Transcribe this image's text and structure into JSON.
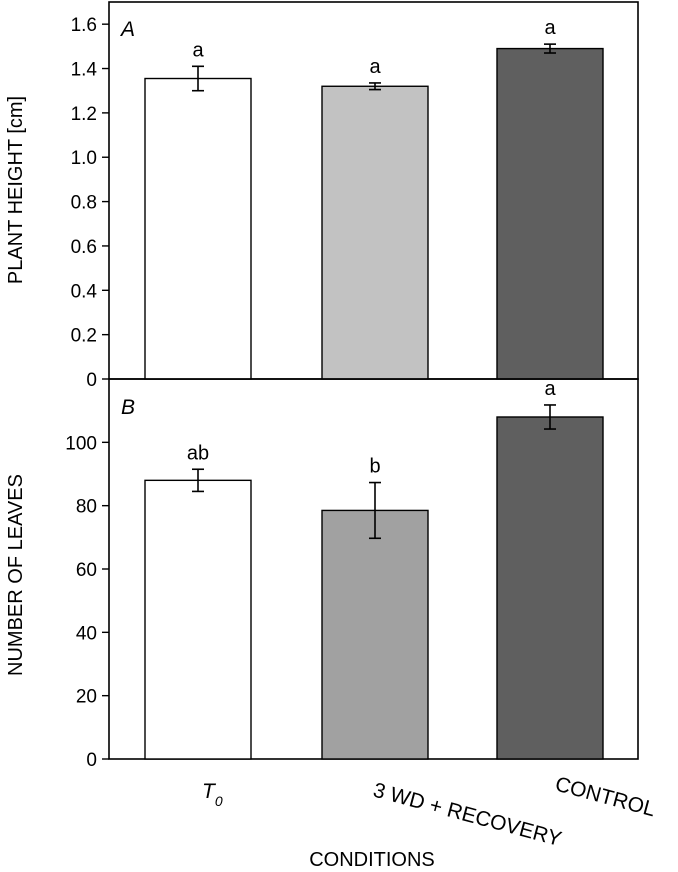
{
  "chart_data": [
    {
      "type": "bar",
      "panel_label": "A",
      "ylabel": "PLANT HEIGHT [cm]",
      "ylim": [
        0,
        1.7
      ],
      "yticks": [
        "0",
        "0.2",
        "0.4",
        "0.6",
        "0.8",
        "1.0",
        "1.2",
        "1.4",
        "1.6"
      ],
      "yticks_values": [
        0,
        0.2,
        0.4,
        0.6,
        0.8,
        1.0,
        1.2,
        1.4,
        1.6
      ],
      "categories": [
        "T0",
        "3 WD + RECOVERY",
        "CONTROL"
      ],
      "values": [
        1.355,
        1.32,
        1.49
      ],
      "errors": [
        0.055,
        0.015,
        0.02
      ],
      "significance": [
        "a",
        "a",
        "a"
      ],
      "colors": [
        "#ffffff",
        "#c2c2c2",
        "#5f5f5f"
      ]
    },
    {
      "type": "bar",
      "panel_label": "B",
      "ylabel": "NUMBER OF LEAVES",
      "ylim": [
        0,
        120
      ],
      "yticks": [
        "0",
        "20",
        "40",
        "60",
        "80",
        "100"
      ],
      "yticks_values": [
        0,
        20,
        40,
        60,
        80,
        100
      ],
      "categories": [
        "T0",
        "3 WD + RECOVERY",
        "CONTROL"
      ],
      "values": [
        88,
        78.5,
        108
      ],
      "errors": [
        3.5,
        8.8,
        3.8
      ],
      "significance": [
        "ab",
        "b",
        "a"
      ],
      "colors": [
        "#ffffff",
        "#a1a1a1",
        "#5f5f5f"
      ]
    }
  ],
  "x_axis": {
    "title": "CONDITIONS",
    "category_labels": {
      "t0_main": "T",
      "t0_sub": "0",
      "wd": "3 WD + RECOVERY",
      "control": "CONTROL"
    }
  }
}
